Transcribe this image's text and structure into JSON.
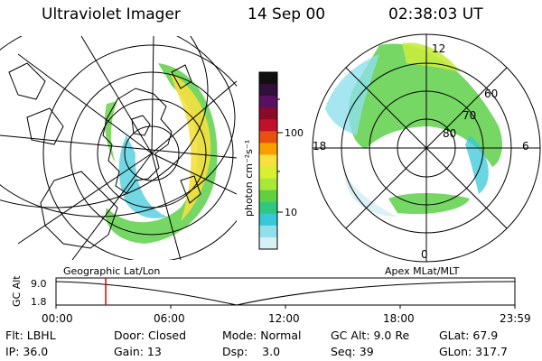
{
  "header": {
    "title": "Ultraviolet Imager",
    "date": "14 Sep 00",
    "time": "02:38:03 UT"
  },
  "colorbar": {
    "unit_label": "photon cm⁻²s⁻¹",
    "ticks": [
      "100",
      "10"
    ],
    "colors": [
      "#101010",
      "#30103a",
      "#5a1060",
      "#8a0a2a",
      "#c0102a",
      "#e85010",
      "#f8a000",
      "#f8e040",
      "#d8f030",
      "#a8e838",
      "#60d040",
      "#30c880",
      "#38c8d8",
      "#90e0ec",
      "#d8f0f4"
    ]
  },
  "polar": {
    "mlt_labels": {
      "top": "12",
      "left": "18",
      "right": "6",
      "bottom": "0"
    },
    "lat_labels": [
      "60",
      "70",
      "80"
    ]
  },
  "timeline": {
    "left_label": "Geographic Lat/Lon",
    "right_label": "Apex MLat/MLT",
    "ylabel": "GC Alt",
    "y_ticks": [
      "9.0",
      "1.8"
    ],
    "x_ticks": [
      "00:00",
      "06:00",
      "12:00",
      "18:00",
      "23:59"
    ],
    "marker_color": "#e00000"
  },
  "info": {
    "row1": [
      "Flt: LBHL",
      "Door: Closed",
      "Mode: Normal",
      "GC Alt: 9.0 Re",
      "GLat: 67.9"
    ],
    "row2": [
      "IP: 36.0",
      "Gain: 13",
      "Dsp:    3.0",
      "Seq: 39",
      "GLon: 317.7"
    ]
  }
}
